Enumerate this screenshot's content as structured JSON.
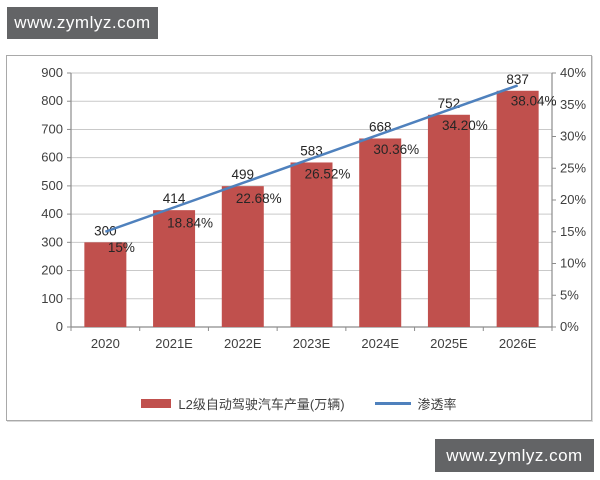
{
  "watermark_top": {
    "text": "www.zymlyz.com"
  },
  "watermark_bottom": {
    "text": "www.zymlyz.com"
  },
  "colors": {
    "bar": "#c0504d",
    "line": "#4f81bd",
    "watermark_bg": "#636466",
    "watermark_text": "#ffffff",
    "grid": "#c9c9c9",
    "axis": "#8c8c8c",
    "text": "#3f3f3f"
  },
  "chart_data": {
    "type": "bar",
    "combo": "bar+line",
    "categories": [
      "2020",
      "2021E",
      "2022E",
      "2023E",
      "2024E",
      "2025E",
      "2026E"
    ],
    "series": [
      {
        "name": "L2级自动驾驶汽车产量(万辆)",
        "type": "bar",
        "axis": "left",
        "values": [
          300,
          414,
          499,
          583,
          668,
          752,
          837
        ],
        "labels": [
          "300",
          "414",
          "499",
          "583",
          "668",
          "752",
          "837"
        ]
      },
      {
        "name": "渗透率",
        "type": "line",
        "axis": "right",
        "values": [
          15,
          18.84,
          22.68,
          26.52,
          30.36,
          34.2,
          38.04
        ],
        "labels": [
          "15%",
          "18.84%",
          "22.68%",
          "26.52%",
          "30.36%",
          "34.20%",
          "38.04%"
        ]
      }
    ],
    "left_axis": {
      "min": 0,
      "max": 900,
      "step": 100,
      "tick_labels": [
        "0",
        "100",
        "200",
        "300",
        "400",
        "500",
        "600",
        "700",
        "800",
        "900"
      ]
    },
    "right_axis": {
      "min": 0,
      "max": 40,
      "step": 5,
      "tick_labels": [
        "0%",
        "5%",
        "10%",
        "15%",
        "20%",
        "25%",
        "30%",
        "35%",
        "40%"
      ]
    },
    "legend_position": "bottom",
    "grid": true,
    "title": ""
  }
}
